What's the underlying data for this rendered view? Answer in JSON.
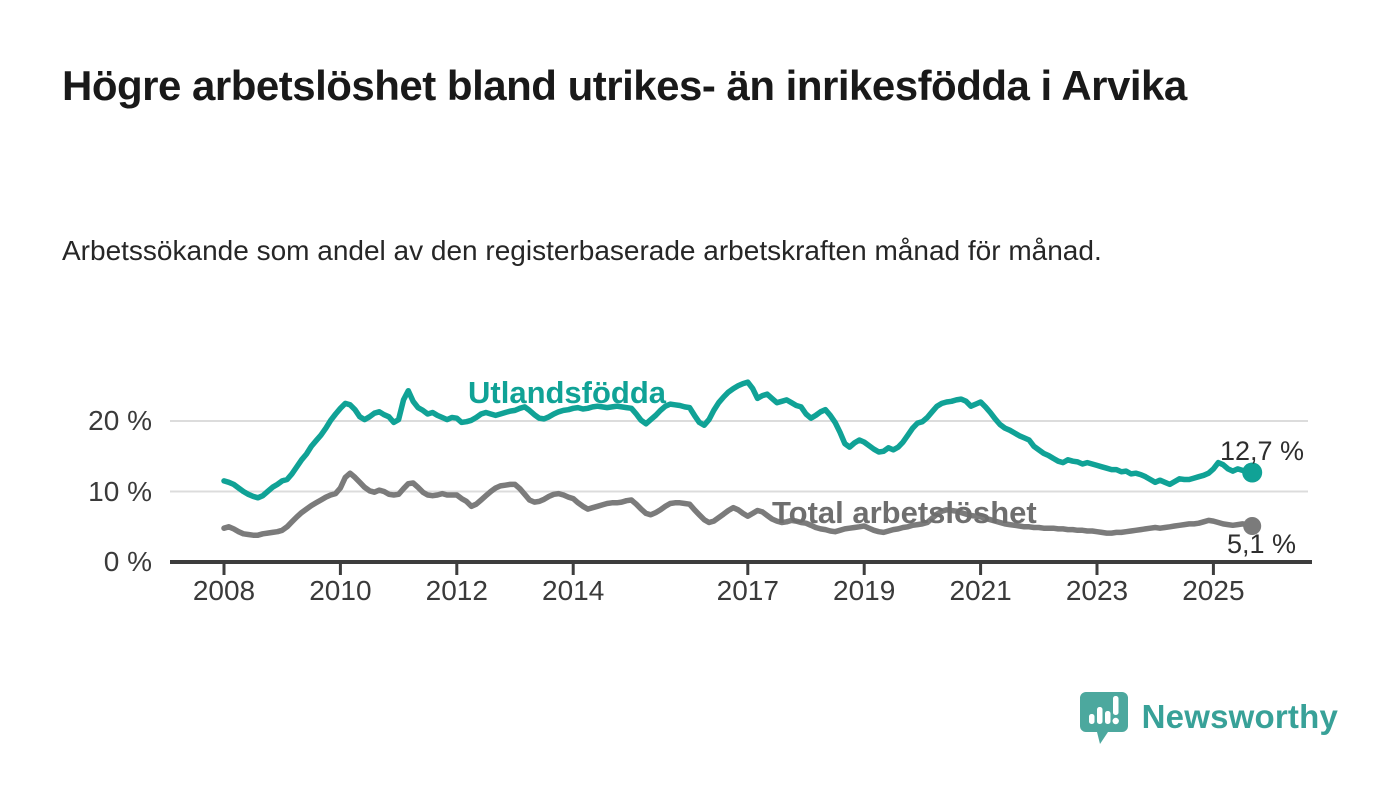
{
  "header": {
    "title": "Högre arbetslöshet bland utrikes- än inrikesfödda i Arvika",
    "subtitle": "Arbetssökande som andel av den registerbaserade arbetskraften månad för månad."
  },
  "chart_data": {
    "type": "line",
    "y_unit": "%",
    "x_start": "2008-01",
    "x_end": "2025-09",
    "x_step": "1 month",
    "x_tick_labels": [
      "2008",
      "2010",
      "2012",
      "2014",
      "2017",
      "2019",
      "2021",
      "2023",
      "2025"
    ],
    "y_ticks": [
      {
        "value": 0,
        "label": "0 %"
      },
      {
        "value": 10,
        "label": "10 %"
      },
      {
        "value": 20,
        "label": "20 %"
      }
    ],
    "ylim": [
      0,
      27
    ],
    "grid": "horizontal",
    "colors": {
      "grid": "#dcdcdc",
      "axis": "#3d3d3d",
      "tick_text": "#3a3a3a",
      "value_label_text": "#2e2e2e"
    },
    "series": [
      {
        "name": "Utlandsfödda",
        "color": "#10a296",
        "end_label": "12,7 %",
        "end_value": 12.7,
        "values": [
          11.5,
          11.3,
          11.0,
          10.5,
          10.0,
          9.6,
          9.3,
          9.1,
          9.4,
          10.0,
          10.6,
          11.0,
          11.5,
          11.7,
          12.5,
          13.5,
          14.5,
          15.3,
          16.4,
          17.2,
          18.0,
          19.0,
          20.1,
          21.0,
          21.8,
          22.5,
          22.3,
          21.6,
          20.6,
          20.2,
          20.6,
          21.1,
          21.3,
          20.9,
          20.6,
          19.8,
          20.2,
          23.0,
          24.3,
          22.8,
          21.9,
          21.5,
          21.0,
          21.2,
          20.8,
          20.5,
          20.2,
          20.5,
          20.4,
          19.8,
          19.9,
          20.1,
          20.5,
          21.0,
          21.2,
          21.0,
          20.8,
          21.0,
          21.2,
          21.4,
          21.5,
          21.8,
          22.0,
          21.5,
          20.9,
          20.4,
          20.3,
          20.6,
          21.0,
          21.3,
          21.5,
          21.6,
          21.8,
          21.9,
          21.7,
          21.8,
          22.0,
          22.1,
          22.0,
          21.9,
          22.0,
          22.1,
          22.0,
          21.9,
          21.8,
          21.0,
          20.1,
          19.6,
          20.2,
          20.8,
          21.5,
          22.1,
          22.4,
          22.3,
          22.2,
          22.0,
          21.9,
          20.8,
          19.8,
          19.4,
          20.2,
          21.5,
          22.6,
          23.4,
          24.1,
          24.6,
          25.0,
          25.3,
          25.5,
          24.6,
          23.2,
          23.6,
          23.8,
          23.2,
          22.6,
          22.8,
          23.0,
          22.6,
          22.2,
          22.0,
          21.0,
          20.4,
          20.8,
          21.3,
          21.6,
          20.8,
          19.8,
          18.4,
          16.8,
          16.3,
          16.9,
          17.3,
          17.0,
          16.5,
          16.0,
          15.6,
          15.7,
          16.2,
          15.9,
          16.3,
          17.0,
          18.0,
          19.0,
          19.7,
          19.9,
          20.5,
          21.3,
          22.1,
          22.5,
          22.7,
          22.8,
          23.0,
          23.1,
          22.8,
          22.1,
          22.4,
          22.7,
          22.0,
          21.2,
          20.3,
          19.5,
          19.0,
          18.7,
          18.3,
          17.9,
          17.6,
          17.3,
          16.4,
          15.9,
          15.4,
          15.1,
          14.7,
          14.3,
          14.1,
          14.5,
          14.3,
          14.2,
          13.9,
          14.1,
          13.9,
          13.7,
          13.5,
          13.3,
          13.1,
          13.1,
          12.8,
          12.9,
          12.5,
          12.6,
          12.4,
          12.1,
          11.7,
          11.3,
          11.6,
          11.3,
          11.0,
          11.4,
          11.8,
          11.7,
          11.7,
          11.9,
          12.1,
          12.3,
          12.6,
          13.2,
          14.1,
          13.8,
          13.2,
          12.9,
          13.2,
          13.0,
          12.8,
          12.7
        ]
      },
      {
        "name": "Total arbetslöshet",
        "color": "#7b7b7b",
        "end_label": "5,1 %",
        "end_value": 5.1,
        "values": [
          4.8,
          5.0,
          4.7,
          4.3,
          4.0,
          3.9,
          3.8,
          3.8,
          4.0,
          4.1,
          4.2,
          4.3,
          4.5,
          5.0,
          5.7,
          6.4,
          7.0,
          7.5,
          8.0,
          8.4,
          8.8,
          9.2,
          9.5,
          9.7,
          10.5,
          12.0,
          12.6,
          12.0,
          11.3,
          10.6,
          10.1,
          9.9,
          10.2,
          10.0,
          9.6,
          9.5,
          9.6,
          10.4,
          11.1,
          11.2,
          10.6,
          9.9,
          9.5,
          9.4,
          9.5,
          9.7,
          9.5,
          9.5,
          9.5,
          9.0,
          8.6,
          7.9,
          8.2,
          8.8,
          9.4,
          10.0,
          10.5,
          10.8,
          10.9,
          11.0,
          11.0,
          10.4,
          9.6,
          8.8,
          8.5,
          8.6,
          8.9,
          9.3,
          9.6,
          9.7,
          9.5,
          9.2,
          9.0,
          8.4,
          7.9,
          7.5,
          7.7,
          7.9,
          8.1,
          8.3,
          8.4,
          8.4,
          8.5,
          8.7,
          8.8,
          8.2,
          7.5,
          6.9,
          6.7,
          7.0,
          7.4,
          7.9,
          8.3,
          8.4,
          8.4,
          8.3,
          8.2,
          7.4,
          6.7,
          6.0,
          5.6,
          5.8,
          6.3,
          6.8,
          7.3,
          7.7,
          7.4,
          6.9,
          6.5,
          6.9,
          7.3,
          7.1,
          6.6,
          6.1,
          5.8,
          5.6,
          5.7,
          5.9,
          5.8,
          5.6,
          5.5,
          5.2,
          4.9,
          4.7,
          4.6,
          4.4,
          4.3,
          4.5,
          4.7,
          4.8,
          4.9,
          5.0,
          5.1,
          4.8,
          4.5,
          4.3,
          4.2,
          4.4,
          4.6,
          4.7,
          4.9,
          5.0,
          5.2,
          5.3,
          5.4,
          5.6,
          6.2,
          6.8,
          7.2,
          7.4,
          7.3,
          7.2,
          7.0,
          6.8,
          6.6,
          6.5,
          6.4,
          6.2,
          6.0,
          5.8,
          5.6,
          5.4,
          5.3,
          5.2,
          5.1,
          5.0,
          5.0,
          4.9,
          4.9,
          4.8,
          4.8,
          4.8,
          4.7,
          4.7,
          4.6,
          4.6,
          4.5,
          4.5,
          4.4,
          4.4,
          4.3,
          4.2,
          4.1,
          4.1,
          4.2,
          4.2,
          4.3,
          4.4,
          4.5,
          4.6,
          4.7,
          4.8,
          4.9,
          4.8,
          4.9,
          5.0,
          5.1,
          5.2,
          5.3,
          5.4,
          5.4,
          5.5,
          5.7,
          5.9,
          5.8,
          5.6,
          5.4,
          5.3,
          5.2,
          5.3,
          5.4,
          5.3,
          5.1
        ]
      }
    ]
  },
  "footer": {
    "brand": "Newsworthy",
    "logo_colors": {
      "bubble": "#4ca89e",
      "glyph": "#ffffff"
    }
  }
}
